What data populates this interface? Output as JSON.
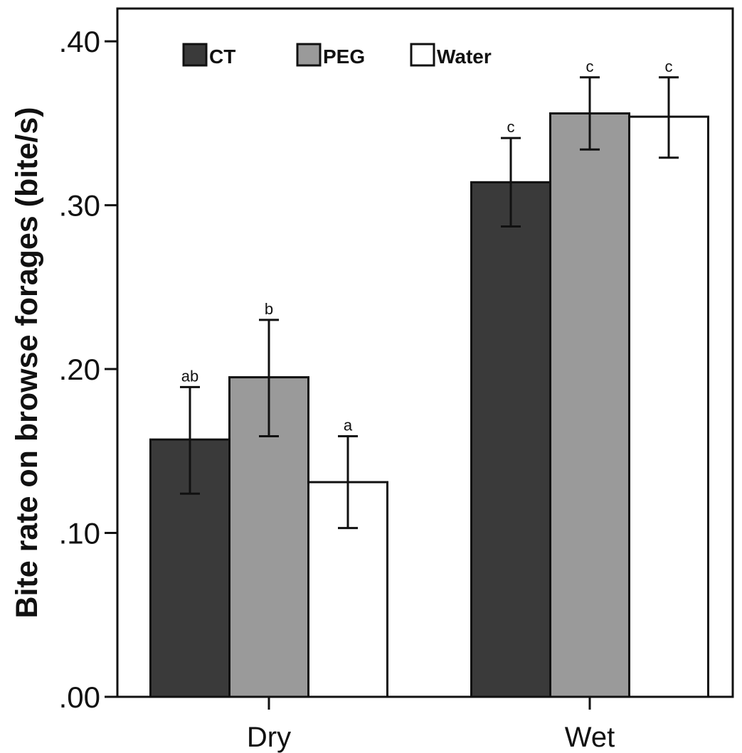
{
  "chart_data": {
    "type": "bar",
    "title": "",
    "xlabel": "",
    "ylabel": "Bite rate on browse forages (bite/s)",
    "categories": [
      "Dry",
      "Wet"
    ],
    "ylim": [
      0,
      0.42
    ],
    "yticks": [
      0,
      0.1,
      0.2,
      0.3,
      0.4
    ],
    "ytick_labels": [
      ".00",
      ".10",
      ".20",
      ".30",
      ".40"
    ],
    "grid": false,
    "legend_position": "top-left",
    "series": [
      {
        "name": "CT",
        "color": "#3a3a3a",
        "values": [
          0.157,
          0.314
        ],
        "error_low": [
          0.124,
          0.287
        ],
        "error_high": [
          0.189,
          0.341
        ],
        "annotations": [
          "ab",
          "c"
        ]
      },
      {
        "name": "PEG",
        "color": "#9a9a9a",
        "values": [
          0.195,
          0.356
        ],
        "error_low": [
          0.159,
          0.334
        ],
        "error_high": [
          0.23,
          0.378
        ],
        "annotations": [
          "b",
          "c"
        ]
      },
      {
        "name": "Water",
        "color": "#ffffff",
        "values": [
          0.131,
          0.354
        ],
        "error_low": [
          0.103,
          0.329
        ],
        "error_high": [
          0.159,
          0.378
        ],
        "annotations": [
          "a",
          "c"
        ]
      }
    ]
  }
}
